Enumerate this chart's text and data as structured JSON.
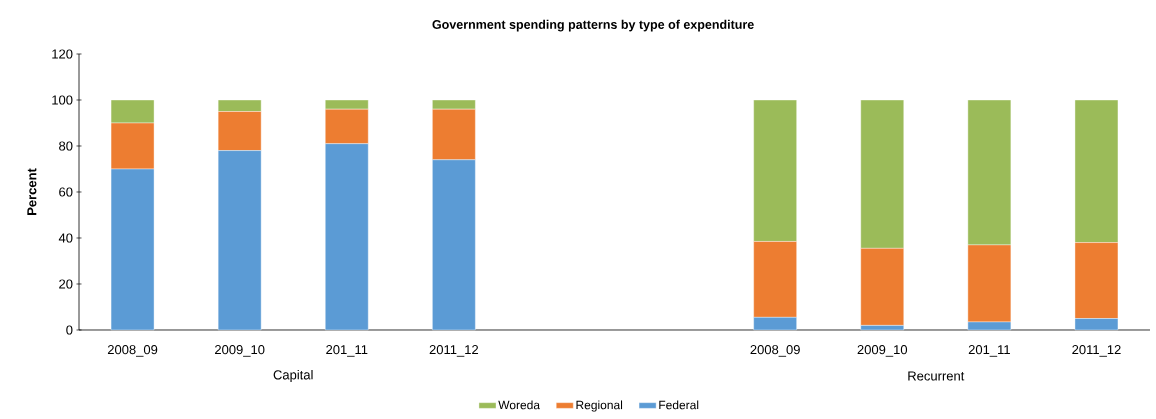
{
  "chart_data": {
    "type": "bar",
    "title": "Government spending patterns by type of expenditure",
    "ylabel": "Percent",
    "categories": [
      "2008_09",
      "2009_10",
      "201_11",
      "2011_12",
      null,
      null,
      "2008_09",
      "2009_10",
      "201_11",
      "2011_12"
    ],
    "stacked": true,
    "series": [
      {
        "name": "Federal",
        "color": "#5b9bd5",
        "values": [
          70,
          78,
          81,
          74,
          null,
          null,
          5.5,
          2,
          3.5,
          5
        ]
      },
      {
        "name": "Regional",
        "color": "#ed7d31",
        "values": [
          20,
          17,
          15,
          22,
          null,
          null,
          33,
          33.5,
          33.5,
          33
        ]
      },
      {
        "name": "Woreda",
        "color": "#9bbb59",
        "values": [
          10,
          5,
          4,
          4,
          null,
          null,
          61.5,
          64.5,
          63,
          62
        ]
      }
    ],
    "ylim": [
      0,
      120
    ],
    "yticks": [
      0,
      20,
      40,
      60,
      80,
      100,
      120
    ],
    "legend": "bottom",
    "annotations": [
      "Capital",
      "Recurrent"
    ]
  }
}
